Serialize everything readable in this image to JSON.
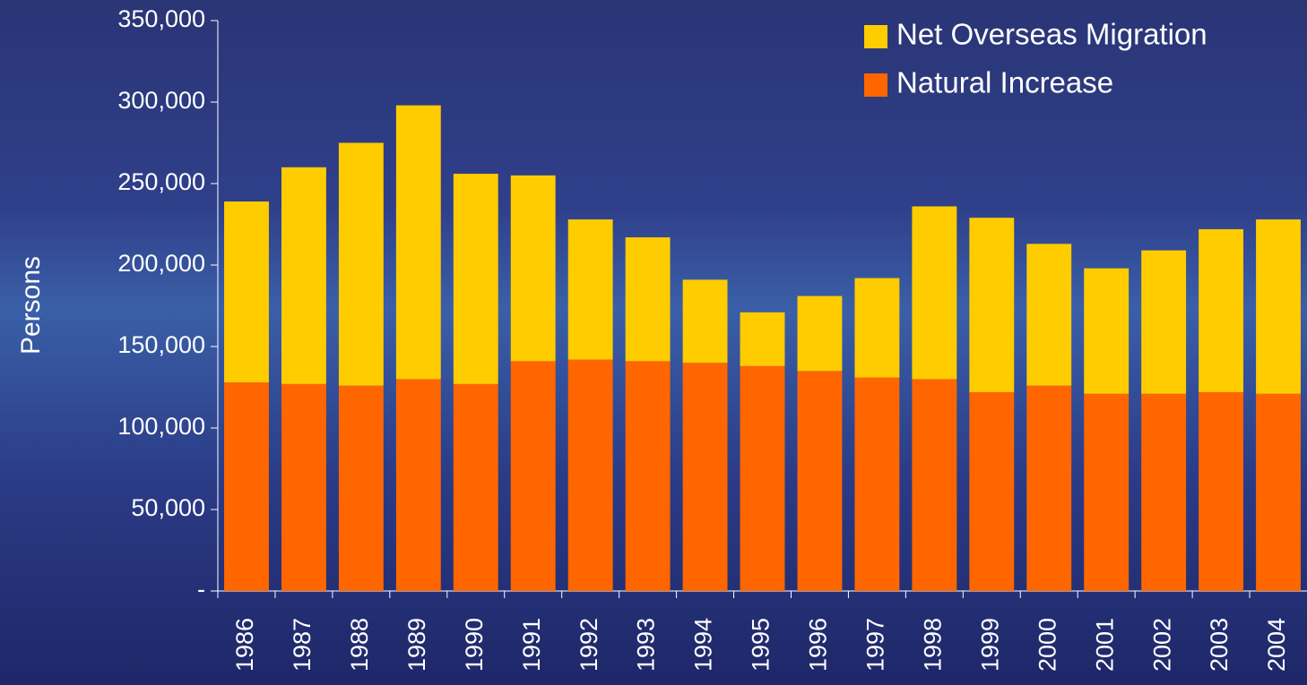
{
  "chart_data": {
    "type": "stacked-bar",
    "y_label": "Persons",
    "categories": [
      "1986",
      "1987",
      "1988",
      "1989",
      "1990",
      "1991",
      "1992",
      "1993",
      "1994",
      "1995",
      "1996",
      "1997",
      "1998",
      "1999",
      "2000",
      "2001",
      "2002",
      "2003",
      "2004"
    ],
    "series": [
      {
        "name": "Natural Increase",
        "color": "#ff6600",
        "values": [
          128000,
          127000,
          126000,
          130000,
          127000,
          141000,
          142000,
          141000,
          140000,
          138000,
          135000,
          131000,
          130000,
          122000,
          126000,
          121000,
          121000,
          122000,
          121000
        ]
      },
      {
        "name": "Net Overseas Migration",
        "color": "#ffcc00",
        "values": [
          111000,
          133000,
          149000,
          168000,
          129000,
          114000,
          86000,
          76000,
          51000,
          33000,
          46000,
          61000,
          106000,
          107000,
          87000,
          77000,
          88000,
          100000,
          107000
        ]
      }
    ],
    "ylim": [
      0,
      350000
    ],
    "yticks": [
      {
        "value": 0,
        "label": "-"
      },
      {
        "value": 50000,
        "label": "50,000"
      },
      {
        "value": 100000,
        "label": "100,000"
      },
      {
        "value": 150000,
        "label": "150,000"
      },
      {
        "value": 200000,
        "label": "200,000"
      },
      {
        "value": 250000,
        "label": "250,000"
      },
      {
        "value": 300000,
        "label": "300,000"
      },
      {
        "value": 350000,
        "label": "350,000"
      }
    ],
    "legend": "top-right"
  }
}
